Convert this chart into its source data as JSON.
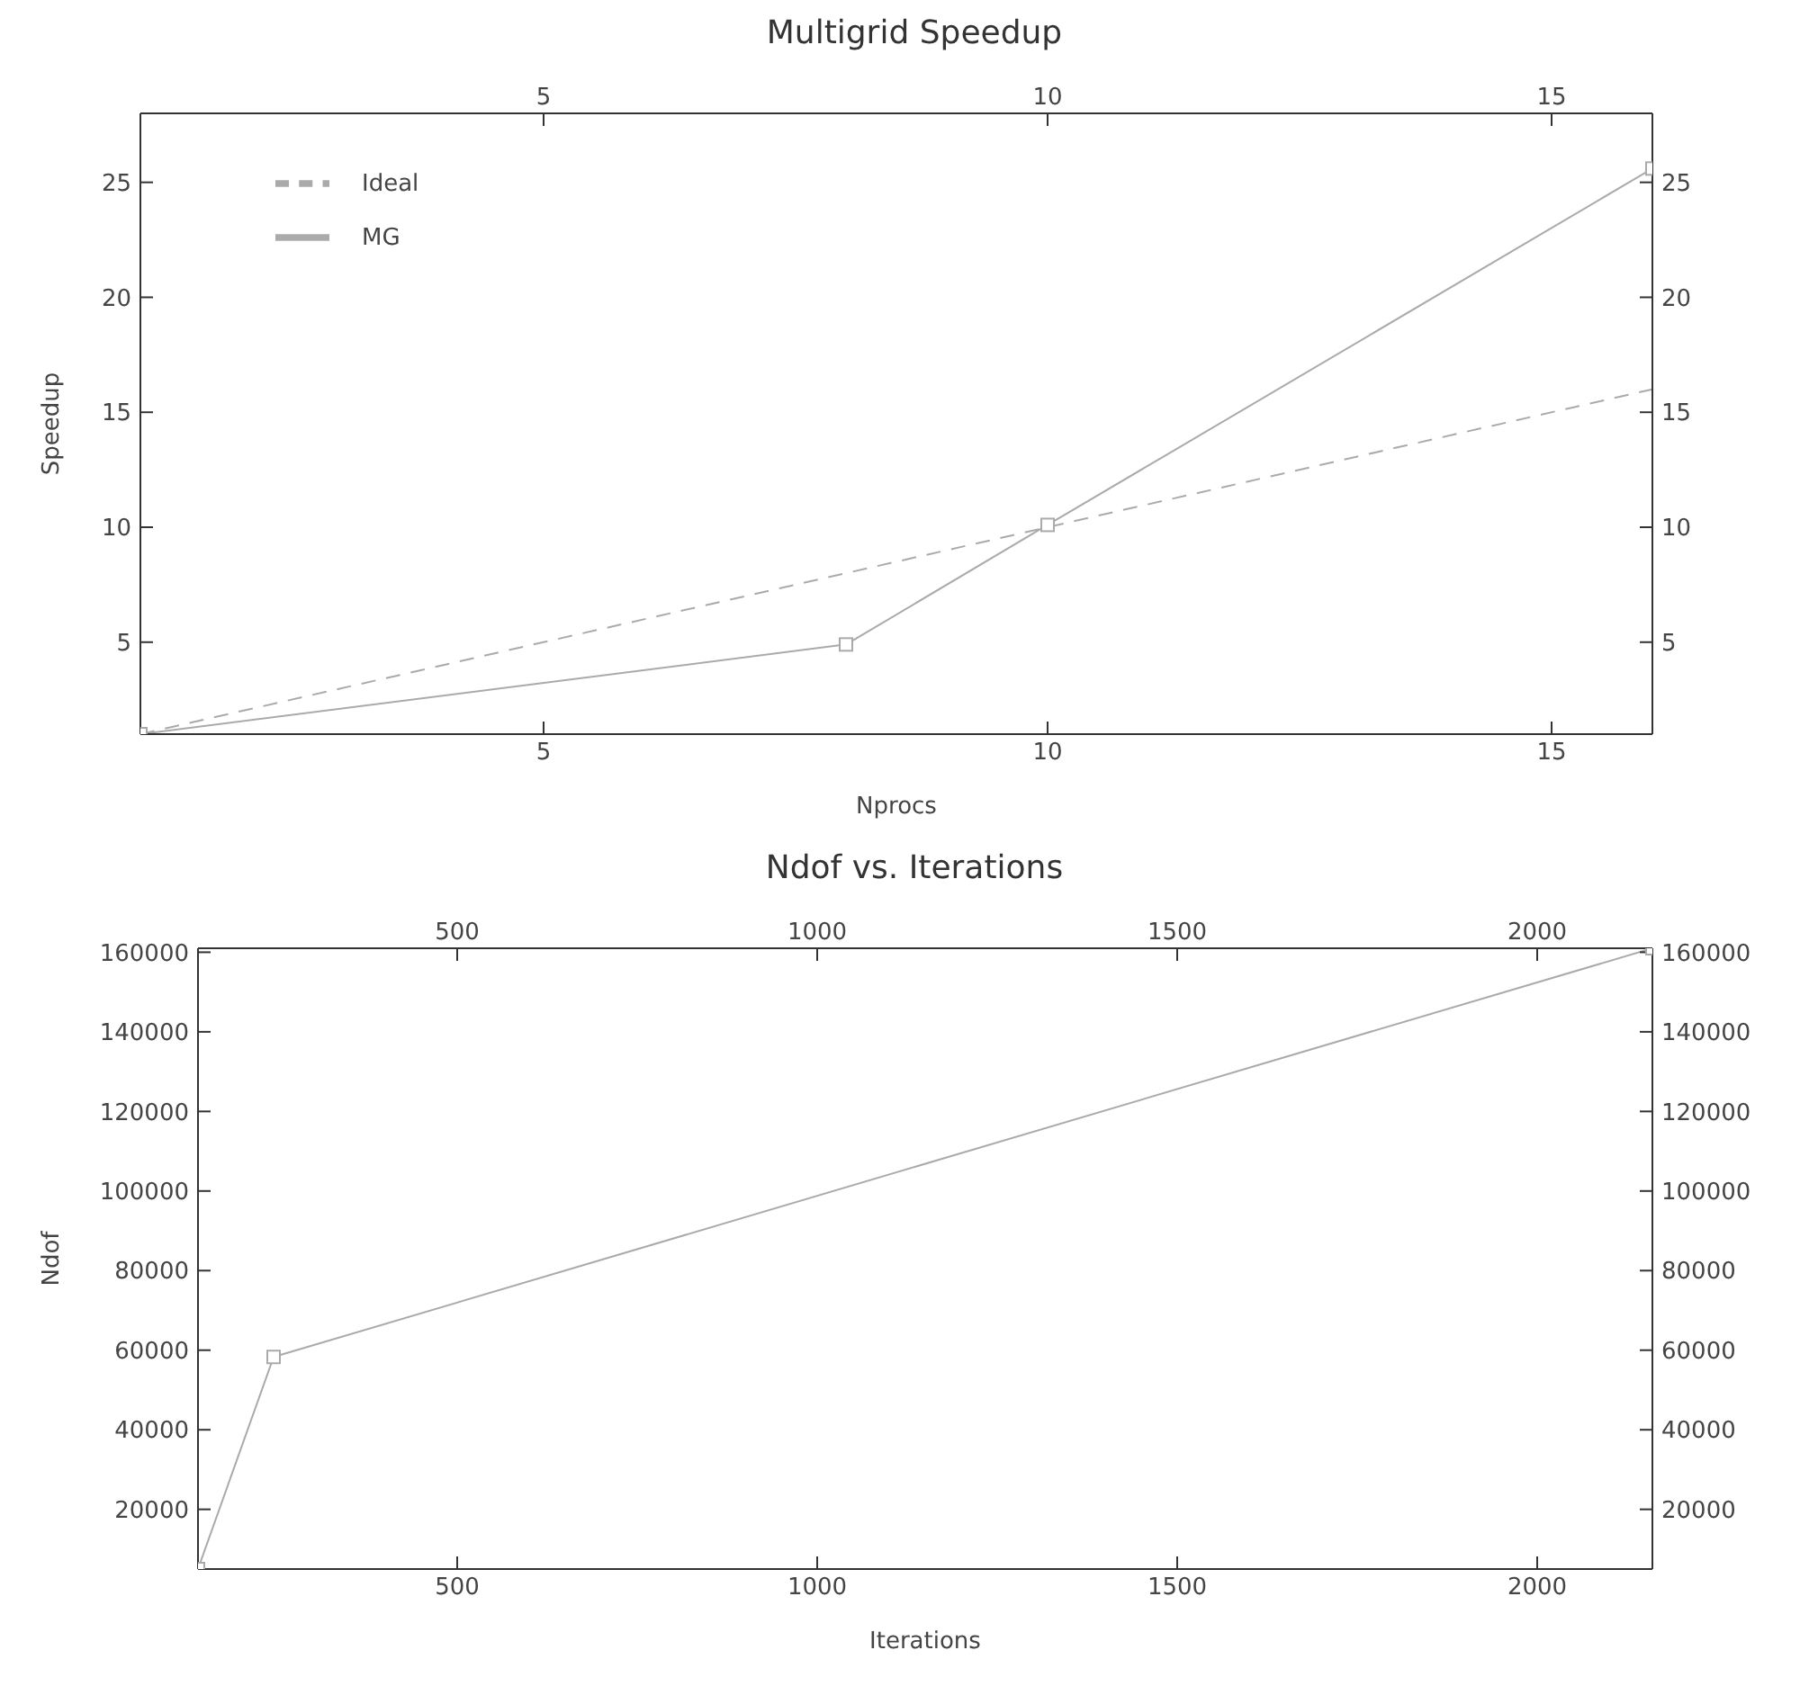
{
  "chart_data": [
    {
      "type": "line",
      "title": "Multigrid Speedup",
      "xlabel": "Nprocs",
      "ylabel": "Speedup",
      "xlim": [
        1,
        16
      ],
      "xticks": [
        5,
        10,
        15
      ],
      "x2lim": [
        1,
        16
      ],
      "x2ticks": [
        5,
        10,
        15
      ],
      "ylim": [
        1,
        28
      ],
      "yticks": [
        5,
        10,
        15,
        20,
        25
      ],
      "y2lim": [
        1,
        28
      ],
      "y2ticks": [
        5,
        10,
        15,
        20,
        25
      ],
      "legend": "top left",
      "series": [
        {
          "name": "Ideal",
          "color": "#aaaaaa",
          "x": [
            1,
            16
          ],
          "values": [
            1,
            16
          ],
          "line_style": "dashed"
        },
        {
          "name": "MG",
          "color": "#aaaaaa",
          "x": [
            1,
            8,
            10,
            16
          ],
          "values": [
            1,
            4.9,
            10.1,
            25.6
          ],
          "line_style": "solid",
          "marker": "square"
        }
      ]
    },
    {
      "type": "line",
      "title": "Ndof vs. Iterations",
      "xlabel": "Iterations",
      "ylabel": "Ndof",
      "xlim": [
        140,
        2160
      ],
      "xticks": [
        500,
        1000,
        1500,
        2000
      ],
      "x2lim": [
        140,
        2160
      ],
      "x2ticks": [
        500,
        1000,
        1500,
        2000
      ],
      "ylim": [
        5000,
        161000
      ],
      "yticks": [
        20000,
        40000,
        60000,
        80000,
        100000,
        120000,
        140000,
        160000
      ],
      "y2lim": [
        5000,
        161000
      ],
      "y2ticks": [
        20000,
        40000,
        60000,
        80000,
        100000,
        120000,
        140000,
        160000
      ],
      "legend": false,
      "series": [
        {
          "color": "#aaaaaa",
          "x": [
            140,
            245,
            2160
          ],
          "values": [
            5000,
            58300,
            161000
          ],
          "line_style": "solid",
          "marker": "square"
        }
      ]
    }
  ]
}
